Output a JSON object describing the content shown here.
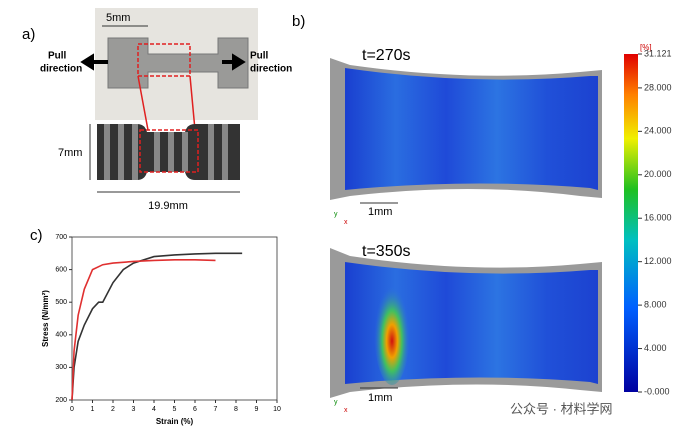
{
  "panels": {
    "a": "a)",
    "b": "b)",
    "c": "c)"
  },
  "panel_a": {
    "scale": "5mm",
    "pull_left": [
      "Pull",
      "direction"
    ],
    "pull_right": [
      "Pull",
      "direction"
    ],
    "height": "7mm",
    "length": "19.9mm"
  },
  "panel_b": {
    "top_time": "t=270s",
    "bottom_time": "t=350s",
    "top_scale": "1mm",
    "bottom_scale": "1mm",
    "axis_y": "y",
    "axis_x": "x"
  },
  "colorbar": {
    "unit": "[%]",
    "range": [
      0,
      31.121
    ],
    "ticks": [
      {
        "value": 31.121,
        "label": "31.121"
      },
      {
        "value": 28,
        "label": "28.000"
      },
      {
        "value": 24,
        "label": "24.000"
      },
      {
        "value": 20,
        "label": "20.000"
      },
      {
        "value": 16,
        "label": "16.000"
      },
      {
        "value": 12,
        "label": "12.000"
      },
      {
        "value": 8,
        "label": "8.000"
      },
      {
        "value": 4,
        "label": "4.000"
      },
      {
        "value": 0,
        "label": "-0.000"
      }
    ]
  },
  "watermark": "公众号 · 材料学网",
  "chart_data": {
    "type": "line",
    "xlabel": "Strain (%)",
    "ylabel": "Stress (N/mm²)",
    "xlim": [
      0,
      10
    ],
    "ylim": [
      200,
      700
    ],
    "xticks": [
      0,
      1,
      2,
      3,
      4,
      5,
      6,
      7,
      8,
      9,
      10
    ],
    "yticks": [
      200,
      300,
      400,
      500,
      600,
      700
    ],
    "series": [
      {
        "color": "#333333",
        "x": [
          0,
          0.1,
          0.3,
          0.6,
          1,
          1.3,
          1.5,
          2,
          2.5,
          3,
          4,
          5,
          6,
          7,
          8.3
        ],
        "values": [
          200,
          300,
          380,
          430,
          480,
          500,
          500,
          560,
          600,
          620,
          640,
          645,
          648,
          650,
          650
        ]
      },
      {
        "color": "#e03030",
        "x": [
          0,
          0.1,
          0.3,
          0.6,
          1,
          1.5,
          2,
          3,
          4,
          5,
          6,
          7
        ],
        "values": [
          200,
          350,
          460,
          540,
          600,
          615,
          620,
          625,
          628,
          630,
          630,
          628
        ]
      }
    ]
  }
}
